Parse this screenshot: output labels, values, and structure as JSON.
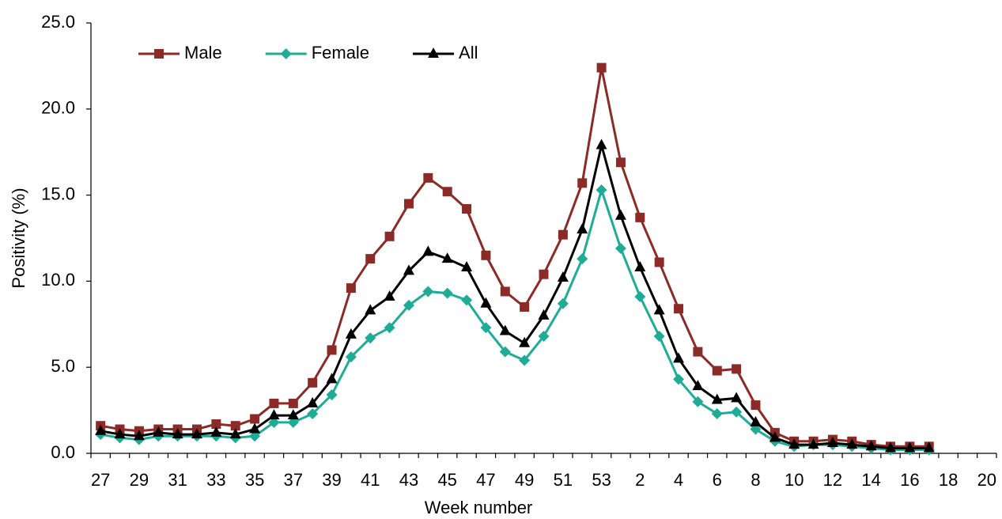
{
  "chart_data": {
    "type": "line",
    "x_label": "Week number",
    "y_label": "Positivity (%)",
    "categories": [
      "27",
      null,
      "29",
      null,
      "31",
      null,
      "33",
      null,
      "35",
      null,
      "37",
      null,
      "39",
      null,
      "41",
      null,
      "43",
      null,
      "45",
      null,
      "47",
      null,
      "49",
      null,
      "51",
      null,
      "53",
      null,
      "2",
      null,
      "4",
      null,
      "6",
      null,
      "8",
      null,
      "10",
      null,
      "12",
      null,
      "14",
      null,
      "16",
      null,
      "18",
      null,
      "20"
    ],
    "ylim": [
      0,
      25
    ],
    "yticks": [
      {
        "value": 0,
        "label": "0.0"
      },
      {
        "value": 5,
        "label": "5.0"
      },
      {
        "value": 10,
        "label": "10.0"
      },
      {
        "value": 15,
        "label": "15.0"
      },
      {
        "value": 20,
        "label": "20.0"
      },
      {
        "value": 25,
        "label": "25.0"
      }
    ],
    "grid": false,
    "legend": "top-left",
    "series": [
      {
        "name": "Male",
        "color": "#8b2a26",
        "marker": "square",
        "values": [
          1.6,
          1.4,
          1.3,
          1.4,
          1.4,
          1.4,
          1.7,
          1.6,
          2.0,
          2.9,
          2.9,
          4.1,
          6.0,
          9.6,
          11.3,
          12.6,
          14.5,
          16.0,
          15.2,
          14.2,
          11.5,
          9.4,
          8.5,
          10.4,
          12.7,
          15.7,
          22.4,
          16.9,
          13.7,
          11.1,
          8.4,
          5.9,
          4.8,
          4.9,
          2.8,
          1.2,
          0.7,
          0.7,
          0.8,
          0.7,
          0.5,
          0.4,
          0.4,
          0.4,
          null,
          null,
          null
        ]
      },
      {
        "name": "Female",
        "color": "#1fac96",
        "marker": "diamond",
        "values": [
          1.1,
          0.9,
          0.8,
          1.0,
          1.0,
          1.0,
          1.0,
          0.9,
          1.0,
          1.8,
          1.8,
          2.3,
          3.4,
          5.6,
          6.7,
          7.3,
          8.6,
          9.4,
          9.3,
          8.9,
          7.3,
          5.9,
          5.4,
          6.8,
          8.7,
          11.3,
          15.3,
          11.9,
          9.1,
          6.8,
          4.3,
          3.0,
          2.3,
          2.4,
          1.4,
          0.7,
          0.4,
          0.5,
          0.5,
          0.4,
          0.3,
          0.2,
          0.2,
          0.2,
          null,
          null,
          null
        ]
      },
      {
        "name": "All",
        "color": "#000000",
        "marker": "triangle",
        "values": [
          1.3,
          1.1,
          1.0,
          1.2,
          1.1,
          1.1,
          1.2,
          1.1,
          1.4,
          2.2,
          2.2,
          2.9,
          4.3,
          6.9,
          8.3,
          9.1,
          10.6,
          11.7,
          11.3,
          10.8,
          8.7,
          7.1,
          6.4,
          8.0,
          10.2,
          13.0,
          17.9,
          13.8,
          10.8,
          8.3,
          5.5,
          3.9,
          3.1,
          3.2,
          1.8,
          0.9,
          0.5,
          0.5,
          0.6,
          0.5,
          0.4,
          0.3,
          0.3,
          0.3,
          null,
          null,
          null
        ]
      }
    ]
  }
}
